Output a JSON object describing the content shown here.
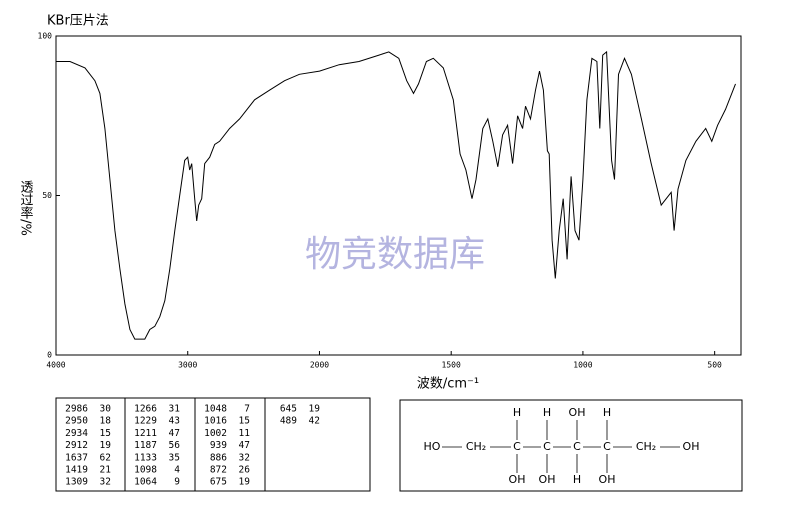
{
  "chart_data": {
    "type": "line",
    "title": "KBr压片法",
    "watermark": "物竞数据库",
    "xlabel": "波数/cm⁻¹",
    "ylabel": "透过率/%",
    "x": [
      4000,
      3894,
      3780,
      3705,
      3667,
      3629,
      3591,
      3553,
      3515,
      3477,
      3439,
      3402,
      3364,
      3326,
      3288,
      3250,
      3212,
      3174,
      3136,
      3098,
      3061,
      3023,
      3000,
      2985,
      2970,
      2947,
      2932,
      2917,
      2894,
      2871,
      2833,
      2795,
      2758,
      2682,
      2606,
      2492,
      2379,
      2265,
      2152,
      2000,
      1925,
      1850,
      1774,
      1737,
      1699,
      1669,
      1643,
      1624,
      1594,
      1568,
      1530,
      1492,
      1466,
      1444,
      1421,
      1406,
      1380,
      1361,
      1342,
      1323,
      1305,
      1286,
      1267,
      1248,
      1229,
      1218,
      1199,
      1180,
      1165,
      1150,
      1135,
      1128,
      1117,
      1105,
      1090,
      1075,
      1060,
      1045,
      1030,
      1015,
      1000,
      985,
      966,
      947,
      936,
      925,
      910,
      891,
      880,
      865,
      842,
      816,
      778,
      741,
      703,
      684,
      665,
      654,
      639,
      609,
      571,
      534,
      511,
      489,
      459,
      421
    ],
    "series": [
      {
        "color": "#000000",
        "values": [
          92,
          92,
          90,
          86,
          82,
          71,
          55,
          39,
          27,
          16,
          8,
          5,
          5,
          5,
          8,
          9,
          12,
          17,
          27,
          39,
          50,
          61,
          62,
          58,
          60,
          49,
          42,
          47,
          49,
          60,
          62,
          66,
          67,
          71,
          74,
          80,
          83,
          86,
          88,
          89,
          91,
          92,
          94,
          95,
          93,
          86,
          82,
          85,
          92,
          93,
          90,
          80,
          63,
          58,
          49,
          55,
          71,
          74,
          67,
          59,
          69,
          72,
          60,
          75,
          71,
          78,
          74,
          83,
          89,
          83,
          64,
          63,
          36,
          24,
          39,
          49,
          30,
          56,
          39,
          36,
          55,
          80,
          93,
          92,
          71,
          94,
          95,
          61,
          55,
          88,
          93,
          88,
          74,
          60,
          47,
          49,
          51,
          39,
          52,
          61,
          67,
          71,
          67,
          72,
          77,
          85
        ]
      }
    ],
    "xlim": [
      4000,
      400
    ],
    "xbreak": 2000,
    "xticks": [
      4000,
      3000,
      2000,
      1500,
      1000,
      500
    ],
    "ylim": [
      0,
      100
    ],
    "yticks": [
      0,
      50,
      100
    ]
  },
  "peak_table": [
    [
      [
        2986,
        30
      ],
      [
        2950,
        18
      ],
      [
        2934,
        15
      ],
      [
        2912,
        19
      ],
      [
        1637,
        62
      ],
      [
        1419,
        21
      ],
      [
        1309,
        32
      ]
    ],
    [
      [
        1266,
        31
      ],
      [
        1229,
        43
      ],
      [
        1211,
        47
      ],
      [
        1187,
        56
      ],
      [
        1133,
        35
      ],
      [
        1098,
        4
      ],
      [
        1064,
        9
      ]
    ],
    [
      [
        1048,
        7
      ],
      [
        1016,
        15
      ],
      [
        1002,
        11
      ],
      [
        939,
        47
      ],
      [
        886,
        32
      ],
      [
        872,
        26
      ],
      [
        675,
        19
      ]
    ],
    [
      [
        645,
        19
      ],
      [
        489,
        42
      ]
    ]
  ],
  "structure": {
    "chain": [
      "HO",
      "CH₂",
      "C",
      "C",
      "C",
      "C",
      "CH₂",
      "OH"
    ],
    "top": [
      "H",
      "H",
      "OH",
      "H"
    ],
    "bottom": [
      "OH",
      "OH",
      "H",
      "OH"
    ]
  }
}
